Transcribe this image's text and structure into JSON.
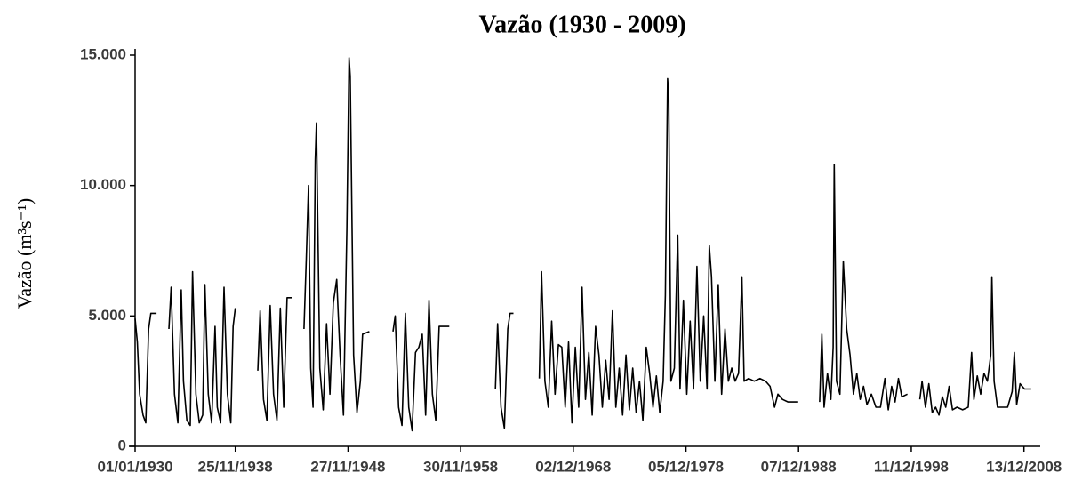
{
  "chart_data": {
    "type": "line",
    "title": "Vazão (1930 - 2009)",
    "y_label": "Vazão (m³s⁻¹)",
    "color": "#000000",
    "xlim": [
      1930,
      2010
    ],
    "xticks": [
      {
        "value": 1930.0,
        "label": "01/01/1930"
      },
      {
        "value": 1938.9,
        "label": "25/11/1938"
      },
      {
        "value": 1948.91,
        "label": "27/11/1948"
      },
      {
        "value": 1958.91,
        "label": "30/11/1958"
      },
      {
        "value": 1968.92,
        "label": "02/12/1968"
      },
      {
        "value": 1978.93,
        "label": "05/12/1978"
      },
      {
        "value": 1988.93,
        "label": "07/12/1988"
      },
      {
        "value": 1998.94,
        "label": "11/12/1998"
      },
      {
        "value": 2008.95,
        "label": "13/12/2008"
      }
    ],
    "ylim": [
      0,
      15000
    ],
    "yticks": [
      {
        "value": 0,
        "label": "0"
      },
      {
        "value": 5000,
        "label": "5.000"
      },
      {
        "value": 10000,
        "label": "10.000"
      },
      {
        "value": 15000,
        "label": "15.000"
      }
    ],
    "x": [
      1930.0,
      1930.2,
      1930.4,
      1930.7,
      1930.95,
      1931.2,
      1931.4,
      1931.9,
      null,
      1933.0,
      1933.2,
      1933.5,
      1933.8,
      1934.1,
      1934.3,
      1934.6,
      1934.9,
      1935.1,
      1935.4,
      1935.7,
      1936.0,
      1936.2,
      1936.5,
      1936.8,
      1937.1,
      1937.3,
      1937.6,
      1937.9,
      1938.2,
      1938.5,
      1938.7,
      1938.9,
      null,
      1940.9,
      1941.1,
      1941.4,
      1941.7,
      1942.0,
      1942.3,
      1942.6,
      1942.9,
      1943.2,
      1943.5,
      1943.9,
      null,
      1945.0,
      1945.2,
      1945.4,
      1945.6,
      1945.8,
      1946.0,
      1946.1,
      1946.4,
      1946.7,
      1947.0,
      1947.3,
      1947.6,
      1947.9,
      1948.2,
      1948.5,
      1948.8,
      1949.0,
      1949.1,
      1949.4,
      1949.7,
      1950.0,
      1950.2,
      1950.8,
      null,
      1952.9,
      1953.1,
      1953.4,
      1953.7,
      1954.0,
      1954.3,
      1954.6,
      1954.9,
      1955.2,
      1955.5,
      1955.8,
      1956.1,
      1956.4,
      1956.7,
      1957.0,
      1957.9,
      null,
      1962.0,
      1962.2,
      1962.5,
      1962.8,
      1963.1,
      1963.3,
      1963.6,
      null,
      1965.9,
      1966.1,
      1966.4,
      1966.7,
      1967.0,
      1967.3,
      1967.6,
      1967.9,
      1968.2,
      1968.5,
      1968.8,
      1969.1,
      1969.4,
      1969.7,
      1970.0,
      1970.3,
      1970.6,
      1970.9,
      1971.2,
      1971.5,
      1971.8,
      1972.1,
      1972.4,
      1972.7,
      1973.0,
      1973.3,
      1973.6,
      1973.9,
      1974.2,
      1974.5,
      1974.8,
      1975.1,
      1975.4,
      1975.7,
      1976.0,
      1976.3,
      1976.6,
      1976.9,
      1977.1,
      1977.3,
      1977.4,
      1977.6,
      1977.9,
      1978.2,
      1978.4,
      1978.7,
      1979.0,
      1979.3,
      1979.6,
      1979.9,
      1980.2,
      1980.5,
      1980.8,
      1981.0,
      1981.2,
      1981.5,
      1981.8,
      1982.1,
      1982.4,
      1982.7,
      1983.0,
      1983.3,
      1983.6,
      1983.9,
      1984.1,
      1984.5,
      1985.0,
      1985.5,
      1986.0,
      1986.4,
      1986.8,
      1987.1,
      1987.5,
      1988.0,
      1988.9,
      null,
      1990.8,
      1991.0,
      1991.2,
      1991.5,
      1991.8,
      1992.0,
      1992.1,
      1992.3,
      1992.6,
      1992.9,
      1993.2,
      1993.5,
      1993.8,
      1994.1,
      1994.4,
      1994.7,
      1995.0,
      1995.4,
      1995.8,
      1996.2,
      1996.6,
      1996.9,
      1997.2,
      1997.5,
      1997.8,
      1998.1,
      1998.6,
      null,
      1999.7,
      1999.9,
      2000.2,
      2000.5,
      2000.8,
      2001.1,
      2001.4,
      2001.7,
      2002.0,
      2002.3,
      2002.6,
      2003.0,
      2003.5,
      2004.0,
      2004.3,
      2004.5,
      2004.8,
      2005.1,
      2005.4,
      2005.7,
      2006.0,
      2006.1,
      2006.3,
      2006.6,
      2007.0,
      2007.5,
      2007.9,
      2008.1,
      2008.3,
      2008.6,
      2009.0,
      2009.6
    ],
    "values": [
      4900,
      4000,
      2000,
      1200,
      900,
      4500,
      5100,
      5100,
      null,
      4500,
      6100,
      2000,
      900,
      6000,
      2500,
      1000,
      800,
      6700,
      2000,
      900,
      1200,
      6200,
      2000,
      900,
      4600,
      1500,
      900,
      6100,
      2000,
      900,
      4600,
      5300,
      null,
      2900,
      5200,
      1800,
      1000,
      5400,
      2000,
      1000,
      5300,
      1500,
      5700,
      5700,
      null,
      4500,
      7200,
      10000,
      3000,
      1500,
      11000,
      12400,
      3000,
      1400,
      4700,
      2000,
      5500,
      6400,
      3500,
      1200,
      8300,
      14900,
      14200,
      3500,
      1300,
      2500,
      4300,
      4400,
      null,
      4400,
      5000,
      1500,
      800,
      5100,
      1500,
      600,
      3600,
      3800,
      4300,
      1200,
      5600,
      2000,
      1000,
      4600,
      4600,
      null,
      2200,
      4700,
      1500,
      700,
      4500,
      5100,
      5100,
      null,
      2600,
      6700,
      2500,
      1500,
      4800,
      2000,
      3900,
      3800,
      1500,
      4000,
      900,
      3800,
      1500,
      6100,
      1800,
      3600,
      1200,
      4600,
      3500,
      1500,
      3300,
      1800,
      5200,
      1500,
      3000,
      1200,
      3500,
      1400,
      3000,
      1300,
      2500,
      1000,
      3800,
      2800,
      1500,
      2700,
      1300,
      2500,
      5800,
      14100,
      13400,
      2500,
      3000,
      8100,
      2200,
      5600,
      2000,
      4800,
      2200,
      6900,
      2500,
      5000,
      2200,
      7700,
      6500,
      2500,
      6200,
      2000,
      4500,
      2500,
      3000,
      2500,
      2800,
      6500,
      2500,
      2600,
      2500,
      2600,
      2500,
      2300,
      1500,
      2000,
      1800,
      1700,
      1700,
      null,
      1700,
      4300,
      1500,
      2800,
      1800,
      3800,
      10800,
      2500,
      2000,
      7100,
      4500,
      3500,
      2000,
      2800,
      1800,
      2300,
      1600,
      2000,
      1500,
      1500,
      2600,
      1400,
      2300,
      1700,
      2600,
      1900,
      2000,
      null,
      1800,
      2500,
      1500,
      2400,
      1300,
      1500,
      1200,
      1900,
      1500,
      2300,
      1400,
      1500,
      1400,
      1500,
      3600,
      1800,
      2700,
      2000,
      2800,
      2500,
      3500,
      6500,
      2500,
      1500,
      1500,
      1500,
      2100,
      3600,
      1600,
      2400,
      2200,
      2200
    ]
  }
}
